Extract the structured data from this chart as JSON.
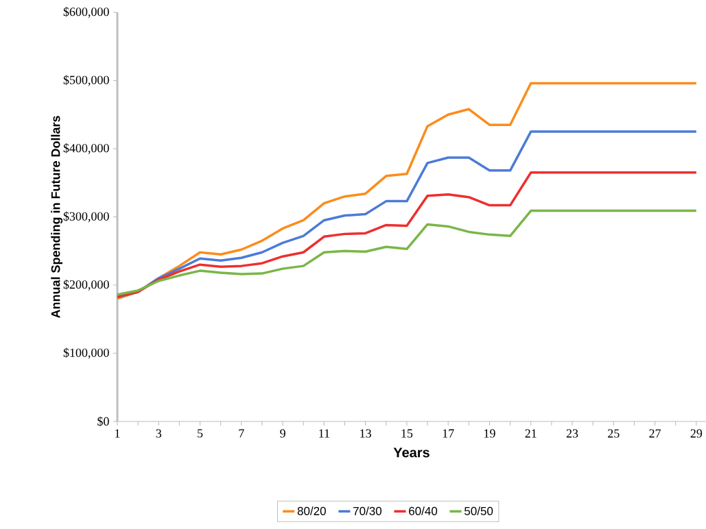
{
  "chart_data": {
    "type": "line",
    "xlabel": "Years",
    "ylabel": "Annual Spending in Future Dollars",
    "x": [
      1,
      2,
      3,
      4,
      5,
      6,
      7,
      8,
      9,
      10,
      11,
      12,
      13,
      14,
      15,
      16,
      17,
      18,
      19,
      20,
      21,
      22,
      23,
      24,
      25,
      26,
      27,
      28,
      29
    ],
    "series": [
      {
        "name": "80/20",
        "color": "#fb8c1c",
        "values": [
          180000,
          190000,
          210000,
          228000,
          248000,
          245000,
          252000,
          265000,
          283000,
          295000,
          320000,
          330000,
          334000,
          360000,
          363000,
          433000,
          450000,
          458000,
          435000,
          435000,
          496000,
          496000,
          496000,
          496000,
          496000,
          496000,
          496000,
          496000,
          496000
        ]
      },
      {
        "name": "70/30",
        "color": "#4a7bd8",
        "values": [
          182000,
          190000,
          210000,
          224000,
          239000,
          236000,
          240000,
          248000,
          262000,
          272000,
          295000,
          302000,
          304000,
          323000,
          323000,
          379000,
          387000,
          387000,
          368000,
          368000,
          425000,
          425000,
          425000,
          425000,
          425000,
          425000,
          425000,
          425000,
          425000
        ]
      },
      {
        "name": "60/40",
        "color": "#ee2e2e",
        "values": [
          183000,
          190000,
          208000,
          220000,
          230000,
          227000,
          228000,
          232000,
          242000,
          248000,
          271000,
          275000,
          276000,
          288000,
          287000,
          331000,
          333000,
          329000,
          317000,
          317000,
          365000,
          365000,
          365000,
          365000,
          365000,
          365000,
          365000,
          365000,
          365000
        ]
      },
      {
        "name": "50/50",
        "color": "#7ab648",
        "values": [
          186000,
          192000,
          206000,
          214000,
          221000,
          218000,
          216000,
          217000,
          224000,
          228000,
          248000,
          250000,
          249000,
          256000,
          253000,
          289000,
          286000,
          278000,
          274000,
          272000,
          309000,
          309000,
          309000,
          309000,
          309000,
          309000,
          309000,
          309000,
          309000
        ]
      }
    ],
    "xlim": [
      1,
      29.47
    ],
    "ylim": [
      0,
      600000
    ],
    "xticks": [
      1,
      {
        "value": 2,
        "label": null
      },
      3,
      {
        "value": 4,
        "label": null
      },
      5,
      {
        "value": 6,
        "label": null
      },
      7,
      {
        "value": 8,
        "label": null
      },
      9,
      {
        "value": 10,
        "label": null
      },
      11,
      {
        "value": 12,
        "label": null
      },
      13,
      {
        "value": 14,
        "label": null
      },
      15,
      {
        "value": 16,
        "label": null
      },
      17,
      {
        "value": 18,
        "label": null
      },
      19,
      {
        "value": 20,
        "label": null
      },
      21,
      {
        "value": 22,
        "label": null
      },
      23,
      {
        "value": 24,
        "label": null
      },
      25,
      {
        "value": 26,
        "label": null
      },
      27,
      {
        "value": 28,
        "label": null
      },
      29
    ],
    "yticks": [
      {
        "value": 0,
        "label": "$0"
      },
      {
        "value": 100000,
        "label": "$100,000"
      },
      {
        "value": 200000,
        "label": "$200,000"
      },
      {
        "value": 300000,
        "label": "$300,000"
      },
      {
        "value": 400000,
        "label": "$400,000"
      },
      {
        "value": 500000,
        "label": "$500,000"
      },
      {
        "value": 600000,
        "label": "$600,000"
      }
    ],
    "grid": false,
    "legend": "bottom",
    "marker": "none",
    "line_style": "solid"
  }
}
